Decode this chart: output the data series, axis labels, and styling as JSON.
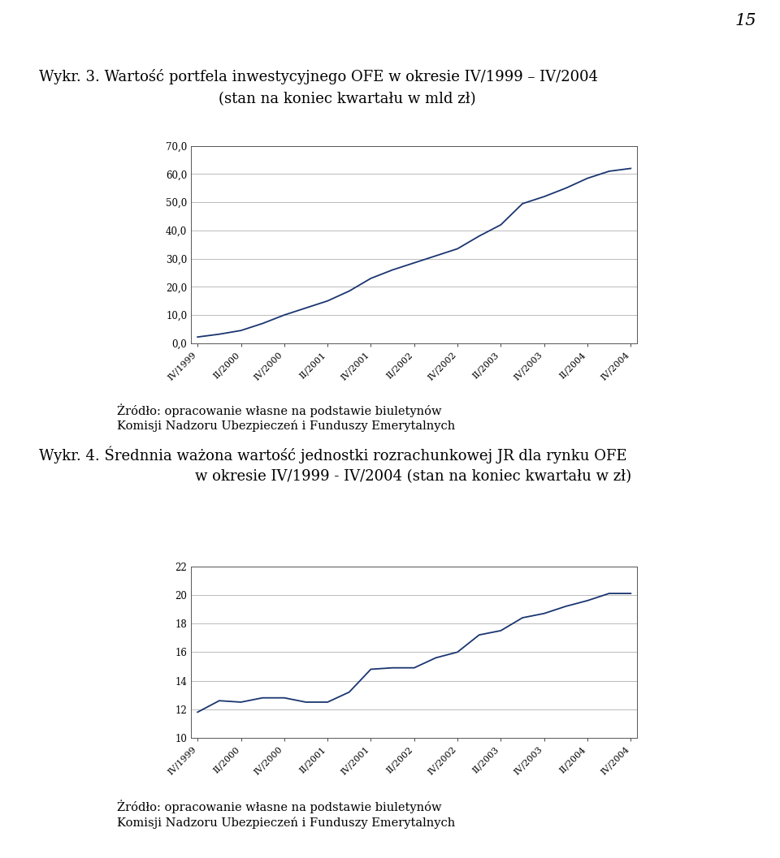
{
  "page_number": "15",
  "chart1": {
    "title_line1": "Wykr. 3. Wartość portfela inwestycyjnego OFE w okresie IV/1999 – IV/2004",
    "title_line2": "(stan na koniec kwartału w mld zł)",
    "x_labels": [
      "IV/1999",
      "II/2000",
      "IV/2000",
      "II/2001",
      "IV/2001",
      "II/2002",
      "IV/2002",
      "II/2003",
      "IV/2003",
      "II/2004",
      "IV/2004"
    ],
    "y_values": [
      2.2,
      3.2,
      4.5,
      7.0,
      10.0,
      12.5,
      15.0,
      18.5,
      23.0,
      26.0,
      28.5,
      31.0,
      33.5,
      38.0,
      42.0,
      49.5,
      52.0,
      55.0,
      58.5,
      61.0,
      62.0
    ],
    "ylim": [
      0,
      70
    ],
    "yticks": [
      0.0,
      10.0,
      20.0,
      30.0,
      40.0,
      50.0,
      60.0,
      70.0
    ],
    "ytick_labels": [
      "0,0",
      "10,0",
      "20,0",
      "30,0",
      "40,0",
      "50,0",
      "60,0",
      "70,0"
    ],
    "source_line1": "Żródło: opracowanie własne na podstawie biuletynów",
    "source_line2": "Komisji Nadzoru Ubezpieczeń i Funduszy Emerytalnych",
    "line_color": "#1a3570",
    "grid_color": "#bbbbbb"
  },
  "chart2": {
    "title_line1": "Wykr. 4. Średnnia ważona wartość jednostki rozrachunkowej JR dla rynku OFE",
    "title_line2": "w okresie IV/1999 - IV/2004 (stan na koniec kwartału w zł)",
    "x_labels": [
      "IV/1999",
      "II/2000",
      "IV/2000",
      "II/2001",
      "IV/2001",
      "II/2002",
      "IV/2002",
      "II/2003",
      "IV/2003",
      "II/2004",
      "IV/2004"
    ],
    "y_values": [
      11.8,
      12.6,
      12.5,
      12.8,
      12.8,
      12.5,
      12.5,
      13.2,
      14.8,
      14.9,
      14.9,
      15.6,
      16.0,
      17.2,
      17.5,
      18.4,
      18.7,
      19.2,
      19.6,
      20.1,
      20.1
    ],
    "ylim": [
      10,
      22
    ],
    "yticks": [
      10,
      12,
      14,
      16,
      18,
      20,
      22
    ],
    "ytick_labels": [
      "10",
      "12",
      "14",
      "16",
      "18",
      "20",
      "22"
    ],
    "source_line1": "Żródło: opracowanie własne na podstawie biuletynów",
    "source_line2": "Komisji Nadzoru Ubezpieczeń i Funduszy Emerytalnych",
    "line_color": "#1a3570",
    "grid_color": "#bbbbbb"
  }
}
